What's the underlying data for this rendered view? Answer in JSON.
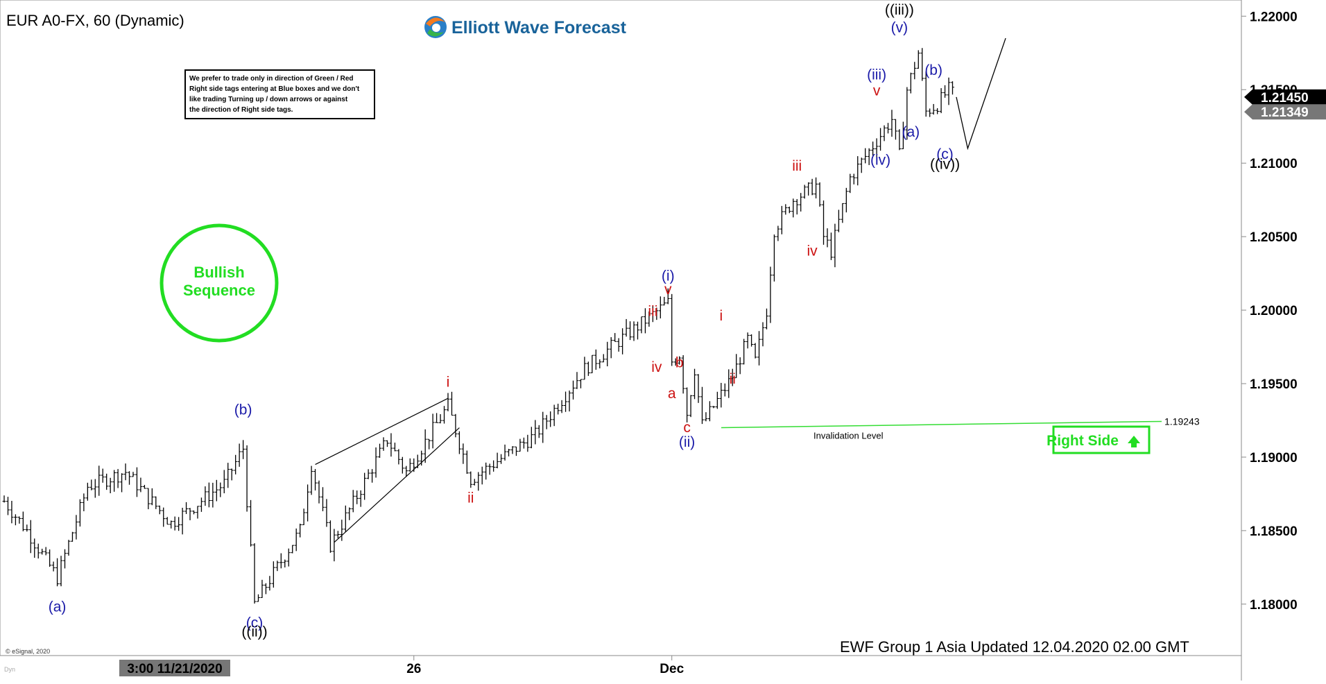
{
  "header": {
    "symbol": "EUR A0-FX, 60 (Dynamic)",
    "brand": "Elliott Wave Forecast",
    "footer": "EWF Group 1 Asia Updated 12.04.2020 02.00 GMT",
    "copyright": "© eSignal, 2020",
    "corner_tag": "Dyn"
  },
  "disclaimer": [
    "We prefer to trade only in direction of Green / Red",
    "Right side tags entering at Blue boxes and we don't",
    "like trading Turning up / down arrows or against",
    "the direction of Right side tags."
  ],
  "badge": {
    "line1": "Bullish",
    "line2": "Sequence"
  },
  "right_side": {
    "label": "Right Side"
  },
  "colors": {
    "wave_blue": "#1a1aa8",
    "wave_red": "#cc1111",
    "green": "#22dd22",
    "bars": "#000000"
  },
  "chart_data": {
    "type": "line",
    "title": "EUR A0-FX, 60 (Dynamic)",
    "interval": "60 min",
    "ylim": [
      1.1765,
      1.2211
    ],
    "y_ticks": [
      "1.22000",
      "1.21500",
      "1.21000",
      "1.20500",
      "1.20000",
      "1.19500",
      "1.19000",
      "1.18500",
      "1.18000"
    ],
    "x_labels": [
      {
        "label": "3:00 11/21/2020",
        "x": 0.4,
        "highlight": true
      },
      {
        "label": "26",
        "x": 108
      },
      {
        "label": "Dec",
        "x": 176
      }
    ],
    "last_price": "1.21450",
    "prev_price": "1.21349",
    "invalidation": {
      "value": 1.19243,
      "label": "1.19243",
      "text": "Invalidation Level"
    },
    "pivots": [
      [
        0,
        1.187
      ],
      [
        6,
        1.185
      ],
      [
        14,
        1.1818
      ],
      [
        22,
        1.188
      ],
      [
        32,
        1.189
      ],
      [
        44,
        1.1855
      ],
      [
        58,
        1.1882
      ],
      [
        63,
        1.1906
      ],
      [
        66,
        1.18
      ],
      [
        78,
        1.185
      ],
      [
        81,
        1.1895
      ],
      [
        86,
        1.184
      ],
      [
        101,
        1.1912
      ],
      [
        106,
        1.189
      ],
      [
        117,
        1.1935
      ],
      [
        123,
        1.1885
      ],
      [
        140,
        1.1915
      ],
      [
        153,
        1.196
      ],
      [
        160,
        1.1975
      ],
      [
        170,
        1.1995
      ],
      [
        175,
        1.2005
      ],
      [
        176,
        1.1965
      ],
      [
        178,
        1.197
      ],
      [
        180,
        1.193
      ],
      [
        182,
        1.196
      ],
      [
        184,
        1.1922
      ],
      [
        192,
        1.1955
      ],
      [
        196,
        1.198
      ],
      [
        198,
        1.1965
      ],
      [
        201,
        1.2
      ],
      [
        203,
        1.2055
      ],
      [
        208,
        1.2075
      ],
      [
        214,
        1.2085
      ],
      [
        216,
        1.205
      ],
      [
        218,
        1.204
      ],
      [
        223,
        1.209
      ],
      [
        234,
        1.213
      ],
      [
        236,
        1.2105
      ],
      [
        238,
        1.215
      ],
      [
        241,
        1.2175
      ],
      [
        243,
        1.2135
      ],
      [
        246,
        1.214
      ],
      [
        249,
        1.215
      ],
      [
        251,
        1.2145
      ]
    ],
    "projection": [
      [
        251,
        1.2145
      ],
      [
        254,
        1.211
      ],
      [
        264,
        1.2185
      ]
    ],
    "wedge_lines": [
      [
        [
          82,
          1.1895
        ],
        [
          117,
          1.194
        ]
      ],
      [
        [
          87,
          1.1842
        ],
        [
          120,
          1.192
        ]
      ]
    ],
    "labels": [
      {
        "text": "(a)",
        "x": 14,
        "y": 1.1795,
        "color": "blue"
      },
      {
        "text": "(b)",
        "x": 63,
        "y": 1.1929,
        "color": "blue"
      },
      {
        "text": "(c)",
        "x": 66,
        "y": 1.1784,
        "color": "blue"
      },
      {
        "text": "((ii))",
        "x": 66,
        "y": 1.1778,
        "color": "black"
      },
      {
        "text": "i",
        "x": 117,
        "y": 1.1948,
        "color": "red"
      },
      {
        "text": "ii",
        "x": 123,
        "y": 1.1869,
        "color": "red"
      },
      {
        "text": "(i)",
        "x": 175,
        "y": 1.202,
        "color": "blue"
      },
      {
        "text": "v",
        "x": 175,
        "y": 1.2011,
        "color": "red"
      },
      {
        "text": "iii",
        "x": 171,
        "y": 1.1996,
        "color": "red"
      },
      {
        "text": "iv",
        "x": 172,
        "y": 1.1958,
        "color": "red"
      },
      {
        "text": "b",
        "x": 178,
        "y": 1.1961,
        "color": "red"
      },
      {
        "text": "a",
        "x": 176,
        "y": 1.194,
        "color": "red"
      },
      {
        "text": "c",
        "x": 180,
        "y": 1.1917,
        "color": "red"
      },
      {
        "text": "(ii)",
        "x": 180,
        "y": 1.1907,
        "color": "blue"
      },
      {
        "text": "i",
        "x": 189,
        "y": 1.1993,
        "color": "red"
      },
      {
        "text": "ii",
        "x": 192,
        "y": 1.195,
        "color": "red"
      },
      {
        "text": "iii",
        "x": 209,
        "y": 1.2095,
        "color": "red"
      },
      {
        "text": "iv",
        "x": 213,
        "y": 1.2037,
        "color": "red"
      },
      {
        "text": "(iii)",
        "x": 230,
        "y": 1.2157,
        "color": "blue"
      },
      {
        "text": "v",
        "x": 230,
        "y": 1.2146,
        "color": "red"
      },
      {
        "text": "(iv)",
        "x": 231,
        "y": 1.2099,
        "color": "blue"
      },
      {
        "text": "(v)",
        "x": 236,
        "y": 1.2189,
        "color": "blue"
      },
      {
        "text": "((iii))",
        "x": 236,
        "y": 1.2201,
        "color": "black"
      },
      {
        "text": "(a)",
        "x": 239,
        "y": 1.2118,
        "color": "blue"
      },
      {
        "text": "(b)",
        "x": 245,
        "y": 1.216,
        "color": "blue"
      },
      {
        "text": "(c)",
        "x": 248,
        "y": 1.2103,
        "color": "blue"
      },
      {
        "text": "((iv))",
        "x": 248,
        "y": 1.2096,
        "color": "black"
      }
    ]
  }
}
